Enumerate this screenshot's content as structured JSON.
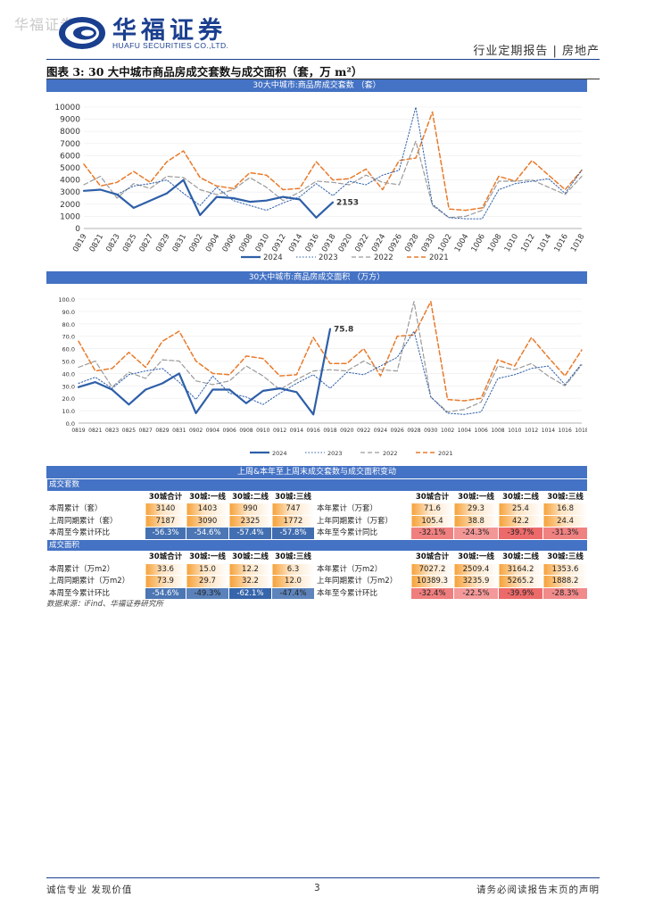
{
  "watermark": "华福证券",
  "brand": {
    "name_cn": "华福证券",
    "name_en": "HUAFU SECURITIES CO.,LTD."
  },
  "header": {
    "report_type": "行业定期报告 | 房地产"
  },
  "figure": {
    "title": "图表 3:  30 大中城市商品房成交套数与成交面积（套，万 m²）"
  },
  "chart_data": [
    {
      "type": "line",
      "title": "30大中城市:商品房成交套数 （套）",
      "x": [
        "0819",
        "0821",
        "0823",
        "0825",
        "0827",
        "0829",
        "0831",
        "0902",
        "0904",
        "0906",
        "0908",
        "0910",
        "0912",
        "0914",
        "0916",
        "0918",
        "0920",
        "0922",
        "0924",
        "0926",
        "0928",
        "0930",
        "1002",
        "1004",
        "1006",
        "1008",
        "1010",
        "1012",
        "1014",
        "1016",
        "1018"
      ],
      "ylim": [
        0,
        10000
      ],
      "yticks": [
        "0",
        "1000",
        "2000",
        "3000",
        "4000",
        "5000",
        "6000",
        "7000",
        "8000",
        "9000",
        "10000"
      ],
      "series": [
        {
          "name": "2024",
          "color": "#2e5fa8",
          "dash": "",
          "width": 2.2,
          "values": [
            3100,
            3200,
            2800,
            1700,
            2300,
            2900,
            4000,
            1100,
            2600,
            2500,
            2200,
            2300,
            2600,
            2400,
            900,
            2153,
            null,
            null,
            null,
            null,
            null,
            null,
            null,
            null,
            null,
            null,
            null,
            null,
            null,
            null,
            null
          ]
        },
        {
          "name": "2023",
          "color": "#2e5fa8",
          "dash": "1.5,2",
          "width": 1,
          "values": [
            3100,
            3200,
            2800,
            3500,
            3700,
            4000,
            2900,
            1900,
            3400,
            2300,
            1900,
            1500,
            2100,
            2600,
            3700,
            2700,
            3900,
            3600,
            4400,
            4800,
            10000,
            2000,
            900,
            800,
            800,
            3200,
            3700,
            3900,
            4100,
            2900,
            4800
          ]
        },
        {
          "name": "2022",
          "color": "#9a9a9a",
          "dash": "5,3",
          "width": 1.2,
          "values": [
            3600,
            4300,
            2500,
            3700,
            3300,
            4300,
            4200,
            3200,
            2800,
            3200,
            4200,
            3400,
            2300,
            3000,
            3900,
            3800,
            3600,
            4400,
            3800,
            3600,
            7200,
            1900,
            900,
            1000,
            1500,
            3900,
            3900,
            4000,
            3400,
            2800,
            4300
          ]
        },
        {
          "name": "2021",
          "color": "#e97a2a",
          "dash": "5,3",
          "width": 1.5,
          "values": [
            5300,
            3500,
            3800,
            4700,
            3800,
            5500,
            6400,
            4200,
            3500,
            3300,
            4600,
            4400,
            3200,
            3300,
            5500,
            4000,
            4100,
            4900,
            3200,
            5600,
            5800,
            9600,
            1600,
            1500,
            1700,
            4300,
            3900,
            5600,
            4400,
            3200,
            4800
          ]
        }
      ],
      "annotations": [
        {
          "label": "2153"
        }
      ]
    },
    {
      "type": "line",
      "title": "30大中城市:商品房成交面积 （万方）",
      "x": [
        "0819",
        "0821",
        "0823",
        "0825",
        "0827",
        "0829",
        "0831",
        "0902",
        "0904",
        "0906",
        "0908",
        "0910",
        "0912",
        "0914",
        "0916",
        "0918",
        "0920",
        "0922",
        "0924",
        "0926",
        "0928",
        "0930",
        "1002",
        "1004",
        "1006",
        "1008",
        "1010",
        "1012",
        "1014",
        "1016",
        "1018"
      ],
      "ylim": [
        0,
        100
      ],
      "yticks": [
        "0.0",
        "10.0",
        "20.0",
        "30.0",
        "40.0",
        "50.0",
        "60.0",
        "70.0",
        "80.0",
        "90.0",
        "100.0"
      ],
      "series": [
        {
          "name": "2024",
          "color": "#2e5fa8",
          "dash": "",
          "width": 2.2,
          "values": [
            29,
            33,
            27,
            15,
            27,
            32,
            40,
            8,
            27,
            27,
            16,
            26,
            28,
            25,
            7,
            75.8,
            null,
            null,
            null,
            null,
            null,
            null,
            null,
            null,
            null,
            null,
            null,
            null,
            null,
            null,
            null
          ]
        },
        {
          "name": "2023",
          "color": "#2e5fa8",
          "dash": "1.5,2",
          "width": 1,
          "values": [
            32,
            37,
            28,
            39,
            42,
            44,
            33,
            19,
            38,
            24,
            21,
            15,
            24,
            32,
            39,
            28,
            41,
            39,
            46,
            53,
            74,
            21,
            8,
            7,
            9,
            36,
            39,
            44,
            46,
            31,
            48
          ]
        },
        {
          "name": "2022",
          "color": "#9a9a9a",
          "dash": "5,3",
          "width": 1.2,
          "values": [
            45,
            50,
            29,
            41,
            36,
            51,
            50,
            34,
            31,
            34,
            46,
            38,
            27,
            35,
            42,
            43,
            42,
            50,
            43,
            42,
            98,
            21,
            9,
            11,
            17,
            46,
            43,
            48,
            38,
            30,
            47
          ]
        },
        {
          "name": "2021",
          "color": "#e97a2a",
          "dash": "5,3",
          "width": 1.5,
          "values": [
            66,
            42,
            44,
            57,
            45,
            66,
            74,
            50,
            40,
            39,
            54,
            52,
            38,
            39,
            69,
            48,
            48,
            60,
            38,
            70,
            71,
            98,
            19,
            18,
            20,
            51,
            46,
            69,
            53,
            38,
            59
          ]
        }
      ],
      "annotations": [
        {
          "label": "75.8"
        }
      ]
    }
  ],
  "table": {
    "title": "上周&本年至上周末成交套数与成交面积变动",
    "section_units": "成交套数",
    "section_area": "成交面积",
    "col_headers_left": [
      "30城合计",
      "30城:一线",
      "30城:二线",
      "30城:三线"
    ],
    "col_headers_right": [
      "30城合计",
      "30城:一线",
      "30城:二线",
      "30城:三线"
    ],
    "units_rows_left": [
      {
        "label": "本周累计（套）",
        "cells": [
          "3140",
          "1403",
          "990",
          "747"
        ]
      },
      {
        "label": "上周同期累计（套）",
        "cells": [
          "7187",
          "3090",
          "2325",
          "1772"
        ]
      },
      {
        "label": "本周至今累计环比",
        "cells": [
          "-56.3%",
          "-54.6%",
          "-57.4%",
          "-57.8%"
        ]
      }
    ],
    "units_rows_right": [
      {
        "label": "本年累计（万套）",
        "cells": [
          "71.6",
          "29.3",
          "25.4",
          "16.8"
        ]
      },
      {
        "label": "上年同期累计（万套）",
        "cells": [
          "105.4",
          "38.8",
          "42.2",
          "24.4"
        ]
      },
      {
        "label": "本年至今累计同比",
        "cells": [
          "-32.1%",
          "-24.3%",
          "-39.7%",
          "-31.3%"
        ]
      }
    ],
    "area_rows_left": [
      {
        "label": "本周累计（万m2）",
        "cells": [
          "33.6",
          "15.0",
          "12.2",
          "6.3"
        ]
      },
      {
        "label": "上周同期累计（万m2）",
        "cells": [
          "73.9",
          "29.7",
          "32.2",
          "12.0"
        ]
      },
      {
        "label": "本周至今累计环比",
        "cells": [
          "-54.6%",
          "-49.3%",
          "-62.1%",
          "-47.4%"
        ]
      }
    ],
    "area_rows_right": [
      {
        "label": "本年累计（万m2）",
        "cells": [
          "7027.2",
          "2509.4",
          "3164.2",
          "1353.6"
        ]
      },
      {
        "label": "上年同期累计（万m2）",
        "cells": [
          "10389.3",
          "3235.9",
          "5265.2",
          "1888.2"
        ]
      },
      {
        "label": "本年至今累计环比",
        "cells": [
          "-32.4%",
          "-22.5%",
          "-39.9%",
          "-28.3%"
        ]
      }
    ]
  },
  "source": "数据来源：iFind、华福证券研究所",
  "footer": {
    "left": "诚信专业  发现价值",
    "page": "3",
    "right": "请务必阅读报告末页的声明"
  }
}
